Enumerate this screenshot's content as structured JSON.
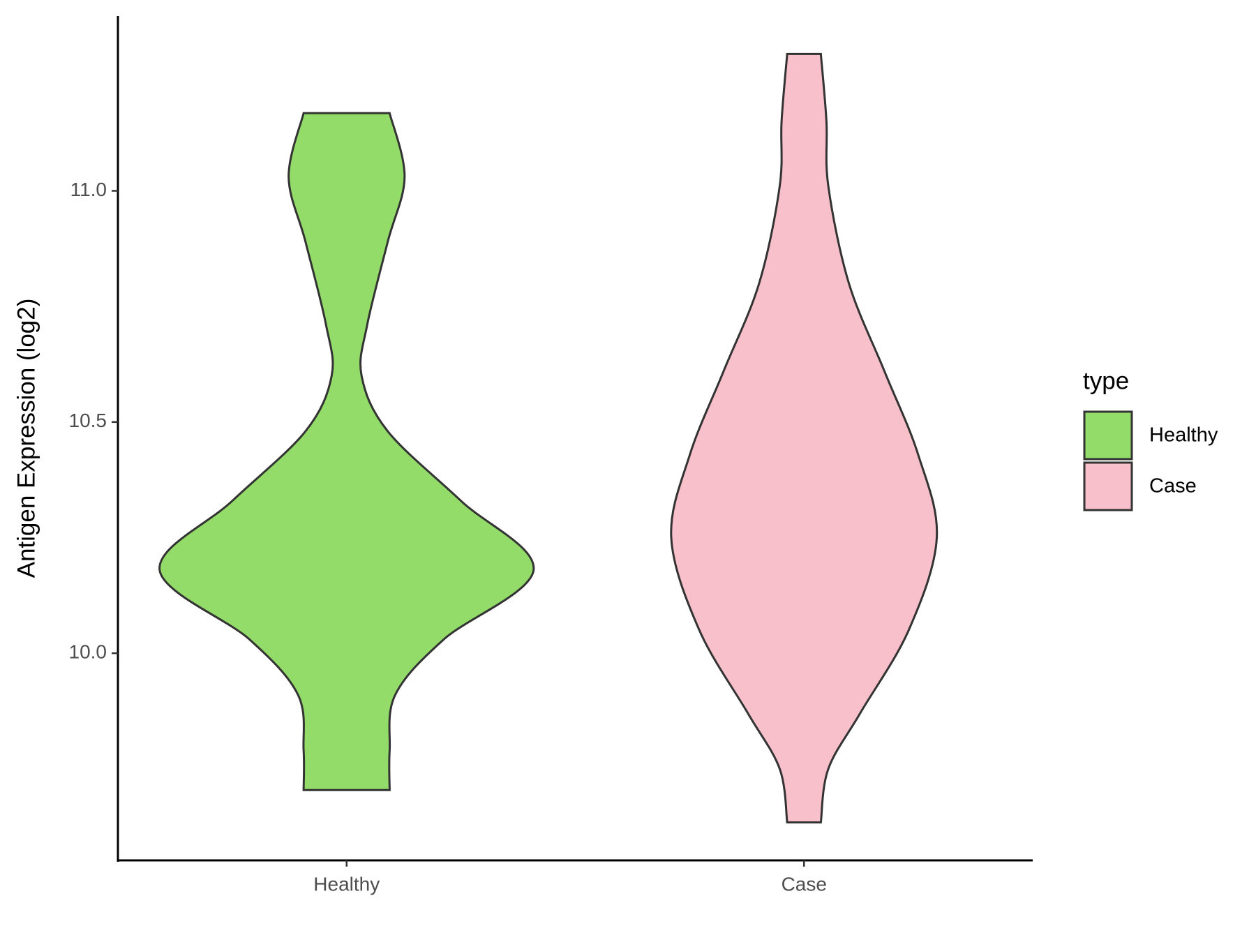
{
  "chart_data": {
    "type": "violin",
    "y_label": "Antigen Expression (log2)",
    "categories": [
      "Healthy",
      "Case"
    ],
    "ylim": [
      9.552,
      11.378
    ],
    "yticks": [
      {
        "value": 10,
        "label": "10.0"
      },
      10.5,
      {
        "value": 11,
        "label": "11.0"
      }
    ],
    "legend_title": "type",
    "legend_position": "right",
    "series": [
      {
        "name": "Healthy",
        "color": "#93dc6a",
        "y": [
          11.168,
          11.03,
          10.89,
          10.71,
          10.6,
          10.48,
          10.33,
          10.18,
          10.03,
          9.91,
          9.79,
          9.704
        ],
        "widths": [
          0.23,
          0.31,
          0.22,
          0.11,
          0.08,
          0.22,
          0.61,
          1,
          0.52,
          0.26,
          0.23,
          0.23
        ]
      },
      {
        "name": "Case",
        "color": "#f7c0cb",
        "y": [
          11.296,
          11.15,
          11.01,
          10.8,
          10.61,
          10.43,
          10.25,
          10.05,
          9.87,
          9.75,
          9.634
        ],
        "widths": [
          0.09,
          0.12,
          0.13,
          0.24,
          0.43,
          0.61,
          0.71,
          0.56,
          0.3,
          0.13,
          0.09
        ]
      }
    ]
  }
}
